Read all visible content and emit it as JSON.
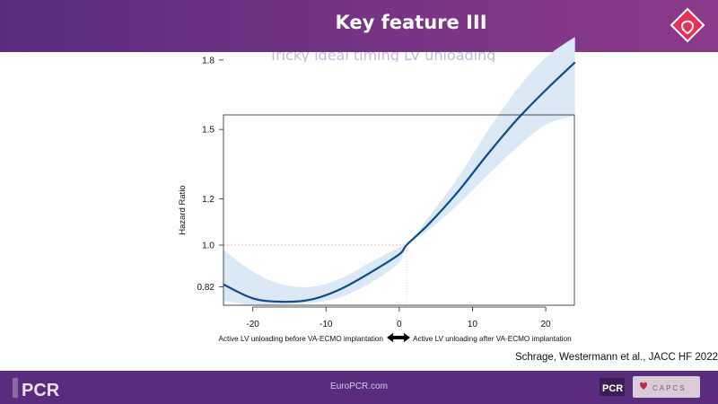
{
  "slide": {
    "title": "Key feature III",
    "subtitle": "Tricky ideal  timing LV unloading",
    "citation": "Schrage, Westermann et al., JACC HF 2022",
    "footer_url": "EuroPCR.com",
    "header_logo_icon": "pcr-heart-logo-icon",
    "footer_logo_text": "PCR",
    "partner_logo_text": "PCR",
    "partner_logo2_text": "CAPCS",
    "colors": {
      "header": "#6a3182",
      "footer": "#5b2c7d",
      "line": "#0b4a8b",
      "band": "#dbe8f5",
      "accent": "#e8305a"
    }
  },
  "chart_data": {
    "type": "line",
    "xlabel": "",
    "ylabel": "Hazard Ratio",
    "xlim": [
      -24,
      24
    ],
    "ylim": [
      0.74,
      1.88
    ],
    "xticks": [
      -20,
      -10,
      0,
      10,
      20
    ],
    "yticks": [
      0.82,
      1.0,
      1.2,
      1.5,
      1.8
    ],
    "ytick_labels": [
      "0.82",
      "1.0",
      "1.2",
      "1.5",
      "1.8"
    ],
    "reference_line": {
      "y": 1.0,
      "x": 1
    },
    "series": [
      {
        "x": [
          -24,
          -20,
          -16,
          -12,
          -8,
          -4,
          0,
          1,
          4,
          8,
          12,
          16,
          20,
          24
        ],
        "values": [
          0.83,
          0.77,
          0.755,
          0.765,
          0.81,
          0.88,
          0.96,
          1.0,
          1.09,
          1.23,
          1.39,
          1.54,
          1.67,
          1.79
        ],
        "lower": [
          0.76,
          0.74,
          0.745,
          0.75,
          0.775,
          0.835,
          0.925,
          1.0,
          1.065,
          1.175,
          1.3,
          1.42,
          1.52,
          1.56
        ],
        "upper": [
          0.98,
          0.885,
          0.83,
          0.82,
          0.855,
          0.925,
          0.99,
          1.0,
          1.12,
          1.29,
          1.49,
          1.67,
          1.81,
          1.9
        ]
      }
    ],
    "annotation": {
      "left": "Active LV unloading before VA-ECMO implantation",
      "right": "Active LV unloading after VA-ECMO implantation",
      "arrow": "double-arrow-icon"
    }
  }
}
